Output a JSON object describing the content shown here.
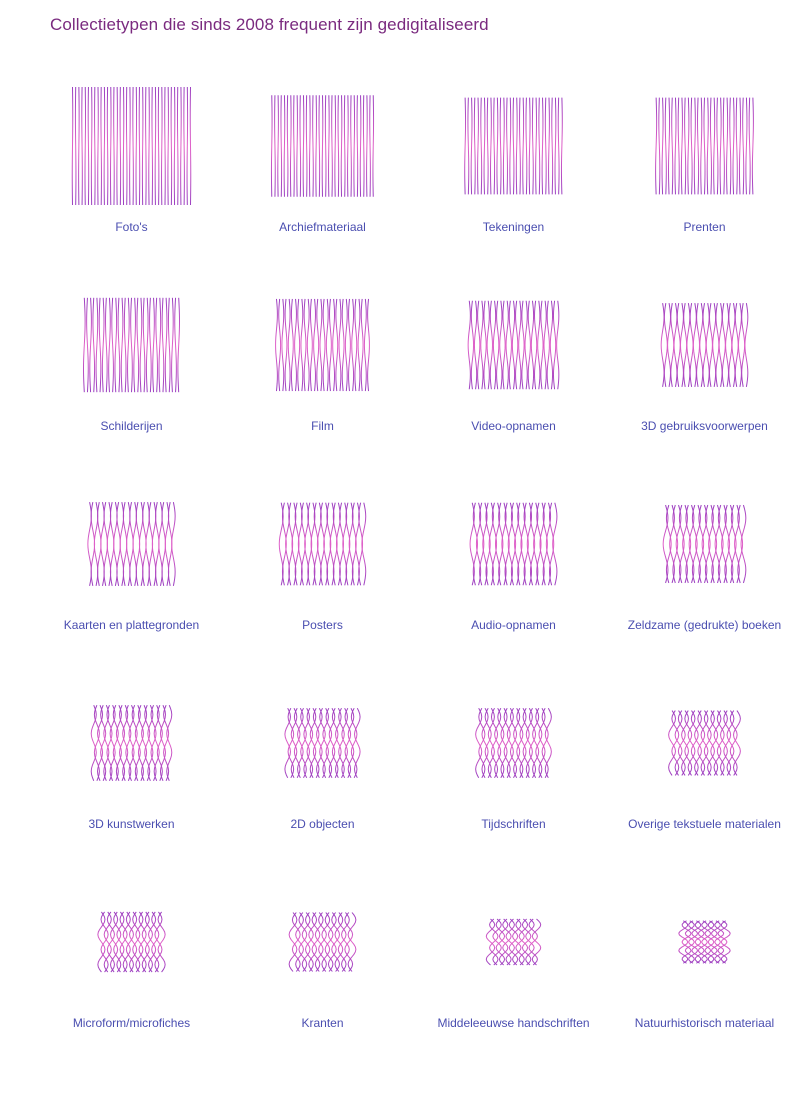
{
  "title": "Collectietypen die sinds 2008 frequent zijn gedigitaliseerd",
  "colors": {
    "line_primary": "#9b3fc0",
    "line_secondary": "#e060c8",
    "label": "#4a4eb0",
    "title": "#7a2a7f"
  },
  "chart_data": {
    "type": "glyph-grid",
    "columns": 4,
    "encoding": "relative size of each square glyph (estimated, largest = 1.0)",
    "items": [
      {
        "label": "Foto's",
        "value": 1.0,
        "wave": 0.05
      },
      {
        "label": "Archiefmateriaal",
        "value": 0.86,
        "wave": 0.06
      },
      {
        "label": "Tekeningen",
        "value": 0.82,
        "wave": 0.08
      },
      {
        "label": "Prenten",
        "value": 0.82,
        "wave": 0.1
      },
      {
        "label": "Schilderijen",
        "value": 0.8,
        "wave": 0.16
      },
      {
        "label": "Film",
        "value": 0.78,
        "wave": 0.18
      },
      {
        "label": "Video-opnamen",
        "value": 0.75,
        "wave": 0.22
      },
      {
        "label": "3D gebruiksvoorwerpen",
        "value": 0.71,
        "wave": 0.28
      },
      {
        "label": "Kaarten en plattegronden",
        "value": 0.71,
        "wave": 0.34
      },
      {
        "label": "Posters",
        "value": 0.7,
        "wave": 0.38
      },
      {
        "label": "Audio-opnamen",
        "value": 0.7,
        "wave": 0.42
      },
      {
        "label": "Zeldzame (gedrukte) boeken",
        "value": 0.66,
        "wave": 0.46
      },
      {
        "label": "3D kunstwerken",
        "value": 0.64,
        "wave": 0.5
      },
      {
        "label": "2D objecten",
        "value": 0.59,
        "wave": 0.55
      },
      {
        "label": "Tijdschriften",
        "value": 0.59,
        "wave": 0.6
      },
      {
        "label": "Overige tekstuele materialen",
        "value": 0.55,
        "wave": 0.66
      },
      {
        "label": "Microform/microfiches",
        "value": 0.51,
        "wave": 0.7
      },
      {
        "label": "Kranten",
        "value": 0.5,
        "wave": 0.74
      },
      {
        "label": "Middeleeuwse handschriften",
        "value": 0.39,
        "wave": 0.8
      },
      {
        "label": "Natuurhistorisch materiaal",
        "value": 0.36,
        "wave": 0.86
      }
    ]
  }
}
